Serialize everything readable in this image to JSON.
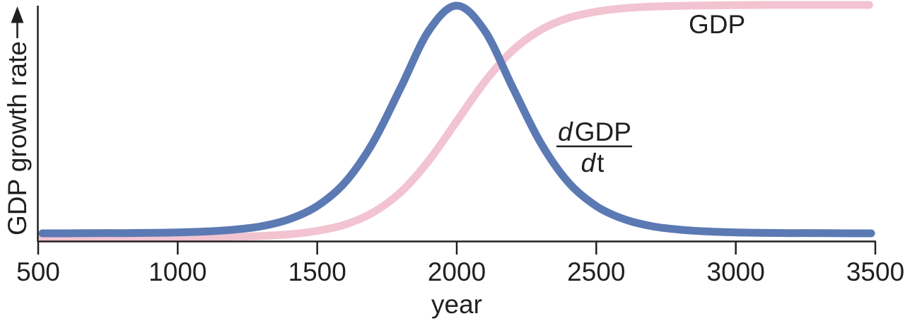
{
  "figure": {
    "y_axis_label": "GDP growth rate",
    "x_axis_label": "year",
    "gdp_label": "GDP",
    "derivative_label": {
      "numerator_d": "d",
      "numerator_rest": "GDP",
      "denominator_d": "d",
      "denominator_rest": "t"
    }
  },
  "colors": {
    "background": "#ffffff",
    "axis": "#231f20",
    "gdp_curve": "#f2c3d1",
    "derivative_curve": "#5b7ab4"
  },
  "chart_data": {
    "type": "line",
    "title": "",
    "xlabel": "year",
    "ylabel": "GDP growth rate",
    "grid": false,
    "legend_position": "none",
    "x_range": [
      500,
      3500
    ],
    "x_ticks": [
      500,
      1000,
      1500,
      2000,
      2500,
      3000,
      3500
    ],
    "y_axis": "unlabeled relative scale, arrow indicates increasing GDP growth rate",
    "annotations": [
      {
        "text": "GDP",
        "attached_to": "gdp"
      },
      {
        "text": "dGDP/dt",
        "attached_to": "derivative",
        "style": "fraction"
      }
    ],
    "series": [
      {
        "key": "gdp",
        "name": "GDP",
        "description": "logistic (S-shaped) GDP curve, midpoint year 2000, scale 142 years, normalized 0-1",
        "color": "#f2c3d1",
        "points": [
          [
            515,
            0.0
          ],
          [
            600,
            0.0
          ],
          [
            700,
            0.0
          ],
          [
            800,
            0.0
          ],
          [
            900,
            0.0
          ],
          [
            1000,
            0.001
          ],
          [
            1100,
            0.002
          ],
          [
            1200,
            0.004
          ],
          [
            1300,
            0.007
          ],
          [
            1400,
            0.014
          ],
          [
            1500,
            0.029
          ],
          [
            1600,
            0.056
          ],
          [
            1700,
            0.108
          ],
          [
            1800,
            0.196
          ],
          [
            1900,
            0.331
          ],
          [
            2000,
            0.5
          ],
          [
            2100,
            0.669
          ],
          [
            2200,
            0.804
          ],
          [
            2300,
            0.892
          ],
          [
            2400,
            0.944
          ],
          [
            2500,
            0.971
          ],
          [
            2600,
            0.986
          ],
          [
            2700,
            0.993
          ],
          [
            2800,
            0.996
          ],
          [
            2900,
            0.998
          ],
          [
            3000,
            0.999
          ],
          [
            3100,
            1.0
          ],
          [
            3200,
            1.0
          ],
          [
            3300,
            1.0
          ],
          [
            3400,
            1.0
          ],
          [
            3478,
            1.0
          ]
        ]
      },
      {
        "key": "derivative",
        "name": "dGDP/dt",
        "description": "bell-shaped growth-rate curve (derivative of logistic), peak at year 2000, normalized 0-1",
        "color": "#5b7ab4",
        "points": [
          [
            515,
            0.0
          ],
          [
            600,
            0.0
          ],
          [
            700,
            0.001
          ],
          [
            800,
            0.001
          ],
          [
            900,
            0.002
          ],
          [
            1000,
            0.004
          ],
          [
            1100,
            0.008
          ],
          [
            1200,
            0.016
          ],
          [
            1300,
            0.031
          ],
          [
            1400,
            0.062
          ],
          [
            1500,
            0.12
          ],
          [
            1600,
            0.224
          ],
          [
            1700,
            0.399
          ],
          [
            1800,
            0.642
          ],
          [
            1900,
            0.89
          ],
          [
            2000,
            1.0
          ],
          [
            2100,
            0.89
          ],
          [
            2200,
            0.642
          ],
          [
            2300,
            0.399
          ],
          [
            2400,
            0.224
          ],
          [
            2500,
            0.12
          ],
          [
            2600,
            0.062
          ],
          [
            2700,
            0.031
          ],
          [
            2800,
            0.016
          ],
          [
            2900,
            0.008
          ],
          [
            3000,
            0.004
          ],
          [
            3100,
            0.002
          ],
          [
            3200,
            0.001
          ],
          [
            3300,
            0.001
          ],
          [
            3400,
            0.0
          ],
          [
            3485,
            0.0
          ]
        ]
      }
    ]
  }
}
